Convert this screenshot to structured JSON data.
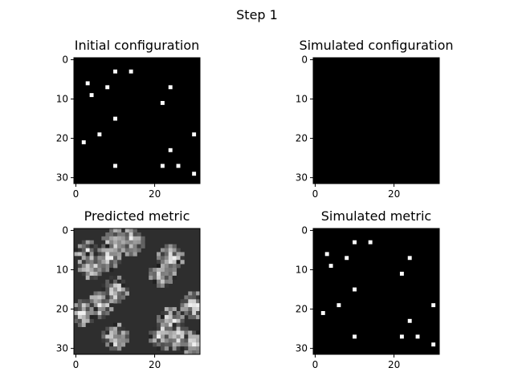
{
  "suptitle": "Step 1",
  "chart_data": [
    {
      "type": "heatmap",
      "title": "Initial configuration",
      "colormap": "gray",
      "background": "#000000",
      "grid_size": [
        32,
        32
      ],
      "xlim": [
        -0.5,
        31.5
      ],
      "ylim": [
        31.5,
        -0.5
      ],
      "xticks": [
        0,
        20
      ],
      "yticks": [
        0,
        10,
        20,
        30
      ],
      "xticklabels": [
        "0",
        "20"
      ],
      "yticklabels": [
        "0",
        "10",
        "20",
        "30"
      ],
      "points": [
        [
          10,
          3
        ],
        [
          14,
          3
        ],
        [
          3,
          6
        ],
        [
          24,
          7
        ],
        [
          8,
          7
        ],
        [
          4,
          9
        ],
        [
          22,
          11
        ],
        [
          10,
          15
        ],
        [
          30,
          19
        ],
        [
          6,
          19
        ],
        [
          2,
          21
        ],
        [
          24,
          23
        ],
        [
          10,
          27
        ],
        [
          22,
          27
        ],
        [
          26,
          27
        ],
        [
          30,
          29
        ]
      ]
    },
    {
      "type": "heatmap",
      "title": "Simulated configuration",
      "colormap": "gray",
      "background": "#000000",
      "grid_size": [
        32,
        32
      ],
      "xlim": [
        -0.5,
        31.5
      ],
      "ylim": [
        31.5,
        -0.5
      ],
      "xticks": [
        0,
        20
      ],
      "yticks": [
        0,
        10,
        20,
        30
      ],
      "xticklabels": [
        "0",
        "20"
      ],
      "yticklabels": [
        "0",
        "10",
        "20",
        "30"
      ],
      "points": []
    },
    {
      "type": "heatmap",
      "title": "Predicted metric",
      "colormap": "gray",
      "background": "#2e2e2e",
      "grid_size": [
        32,
        32
      ],
      "xlim": [
        -0.5,
        31.5
      ],
      "ylim": [
        31.5,
        -0.5
      ],
      "xticks": [
        0,
        20
      ],
      "yticks": [
        0,
        10,
        20,
        30
      ],
      "xticklabels": [
        "0",
        "20"
      ],
      "yticklabels": [
        "0",
        "10",
        "20",
        "30"
      ],
      "points": [
        [
          10,
          3
        ],
        [
          14,
          3
        ],
        [
          3,
          6
        ],
        [
          24,
          7
        ],
        [
          8,
          7
        ],
        [
          4,
          9
        ],
        [
          22,
          11
        ],
        [
          10,
          15
        ],
        [
          30,
          19
        ],
        [
          6,
          19
        ],
        [
          2,
          21
        ],
        [
          24,
          23
        ],
        [
          10,
          27
        ],
        [
          22,
          27
        ],
        [
          26,
          27
        ],
        [
          30,
          29
        ]
      ]
    },
    {
      "type": "heatmap",
      "title": "Simulated metric",
      "colormap": "gray",
      "background": "#000000",
      "grid_size": [
        32,
        32
      ],
      "xlim": [
        -0.5,
        31.5
      ],
      "ylim": [
        31.5,
        -0.5
      ],
      "xticks": [
        0,
        20
      ],
      "yticks": [
        0,
        10,
        20,
        30
      ],
      "xticklabels": [
        "0",
        "20"
      ],
      "yticklabels": [
        "0",
        "10",
        "20",
        "30"
      ],
      "points": [
        [
          10,
          3
        ],
        [
          14,
          3
        ],
        [
          3,
          6
        ],
        [
          24,
          7
        ],
        [
          8,
          7
        ],
        [
          4,
          9
        ],
        [
          22,
          11
        ],
        [
          10,
          15
        ],
        [
          30,
          19
        ],
        [
          6,
          19
        ],
        [
          2,
          21
        ],
        [
          24,
          23
        ],
        [
          10,
          27
        ],
        [
          22,
          27
        ],
        [
          26,
          27
        ],
        [
          30,
          29
        ]
      ]
    }
  ]
}
